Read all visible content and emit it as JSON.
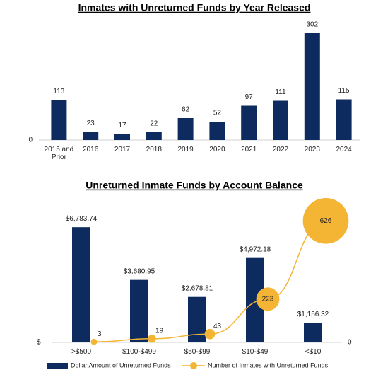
{
  "chart_data": [
    {
      "type": "bar",
      "title": "Inmates with Unreturned Funds by Year Released",
      "categories": [
        "2015 and Prior",
        "2016",
        "2017",
        "2018",
        "2019",
        "2020",
        "2021",
        "2022",
        "2023",
        "2024"
      ],
      "values": [
        113,
        23,
        17,
        22,
        62,
        52,
        97,
        111,
        302,
        115
      ],
      "color": "#0d2b5e",
      "ylim": [
        0,
        320
      ],
      "yticks": [
        0
      ]
    },
    {
      "type": "combo",
      "title": "Unreturned Inmate Funds by Account Balance",
      "categories": [
        ">$500",
        "$100-$499",
        "$50-$99",
        "$10-$49",
        "<$10"
      ],
      "series": [
        {
          "name": "Dollar Amount of Unreturned Funds",
          "type": "bar",
          "color": "#0d2b5e",
          "values": [
            6783.74,
            3680.95,
            2678.81,
            4972.18,
            1156.32
          ],
          "value_labels": [
            "$6,783.74",
            "$3,680.95",
            "$2,678.81",
            "$4,972.18",
            "$1,156.32"
          ]
        },
        {
          "name": "Number of Inmates with Unreturned Funds",
          "type": "bubble-line",
          "color": "#f4b434",
          "axis": "y2",
          "values": [
            3,
            19,
            43,
            223,
            626
          ]
        }
      ],
      "ylim": [
        0,
        8000
      ],
      "yticks": [
        {
          "value": 0,
          "label": "$-"
        }
      ],
      "y2lim": [
        0,
        700
      ],
      "y2ticks": [
        0
      ]
    }
  ]
}
